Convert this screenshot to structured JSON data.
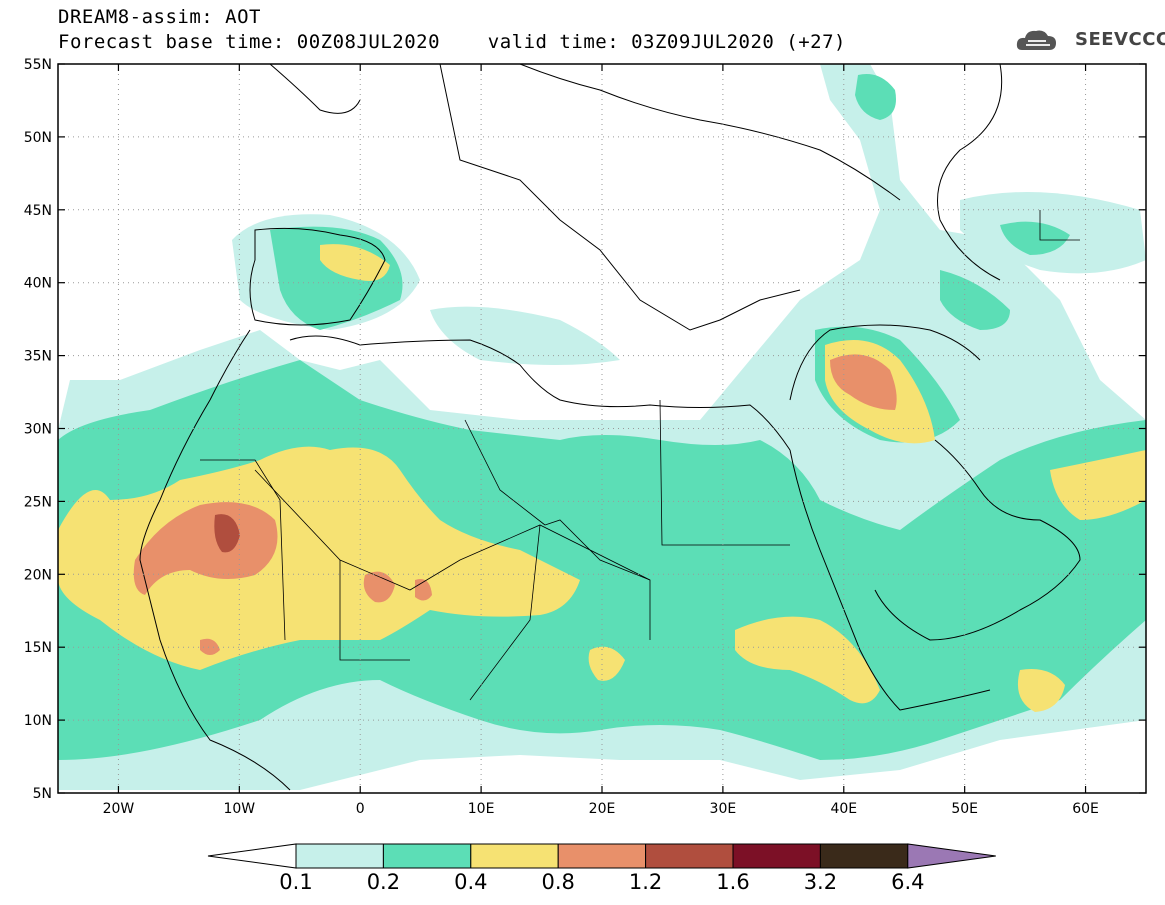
{
  "header": {
    "line1": "DREAM8-assim: AOT",
    "line2": "Forecast base time: 00Z08JUL2020    valid time: 03Z09JUL2020 (+27)"
  },
  "logo": {
    "text": "SEEVCCC",
    "icon": "cloud-logo-icon"
  },
  "map": {
    "lon_range": [
      -25,
      65
    ],
    "lat_range": [
      5,
      55
    ],
    "lon_ticks": [
      {
        "value": -20,
        "label": "20W"
      },
      {
        "value": -10,
        "label": "10W"
      },
      {
        "value": 0,
        "label": "0"
      },
      {
        "value": 10,
        "label": "10E"
      },
      {
        "value": 20,
        "label": "20E"
      },
      {
        "value": 30,
        "label": "30E"
      },
      {
        "value": 40,
        "label": "40E"
      },
      {
        "value": 50,
        "label": "50E"
      },
      {
        "value": 60,
        "label": "60E"
      }
    ],
    "lat_ticks": [
      {
        "value": 5,
        "label": "5N"
      },
      {
        "value": 10,
        "label": "10N"
      },
      {
        "value": 15,
        "label": "15N"
      },
      {
        "value": 20,
        "label": "20N"
      },
      {
        "value": 25,
        "label": "25N"
      },
      {
        "value": 30,
        "label": "30N"
      },
      {
        "value": 35,
        "label": "35N"
      },
      {
        "value": 40,
        "label": "40N"
      },
      {
        "value": 45,
        "label": "45N"
      },
      {
        "value": 50,
        "label": "50N"
      },
      {
        "value": 55,
        "label": "55N"
      }
    ]
  },
  "colorbar": {
    "levels": [
      "0.1",
      "0.2",
      "0.4",
      "0.8",
      "1.2",
      "1.6",
      "3.2",
      "6.4"
    ],
    "colors": [
      "#c6f0ea",
      "#5cdeb6",
      "#f6e273",
      "#e8906a",
      "#b04e3e",
      "#7c1026",
      "#3a2a1a",
      "#9b78b4"
    ]
  }
}
